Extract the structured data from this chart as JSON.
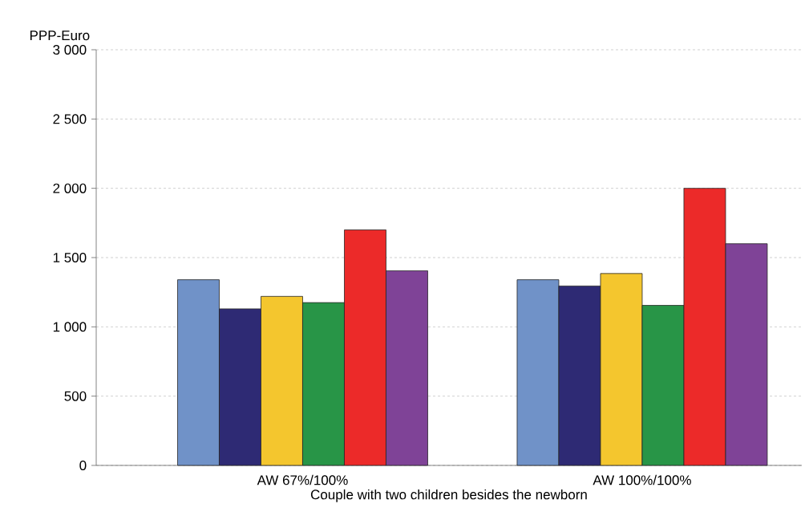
{
  "chart_data": {
    "type": "bar",
    "xlabel": "Couple with two children besides the newborn",
    "ylabel": "PPP-Euro",
    "categories": [
      "AW 67%/100%",
      "AW 100%/100%"
    ],
    "series": [
      {
        "color": "#7092c8",
        "values": [
          1340,
          1340
        ]
      },
      {
        "color": "#2e2a74",
        "values": [
          1130,
          1295
        ]
      },
      {
        "color": "#f4c62e",
        "values": [
          1220,
          1385
        ]
      },
      {
        "color": "#289547",
        "values": [
          1175,
          1155
        ]
      },
      {
        "color": "#ec2a29",
        "values": [
          1700,
          2000
        ]
      },
      {
        "color": "#7f4397",
        "values": [
          1405,
          1600
        ]
      }
    ],
    "ylim": [
      0,
      3000
    ],
    "yticks": [
      {
        "value": 0,
        "label": "0"
      },
      {
        "value": 500,
        "label": "500"
      },
      {
        "value": 1000,
        "label": "1 000"
      },
      {
        "value": 1500,
        "label": "1 500"
      },
      {
        "value": 2000,
        "label": "2 000"
      },
      {
        "value": 2500,
        "label": "2 500"
      },
      {
        "value": 3000,
        "label": "3 000"
      }
    ],
    "grid": "y"
  }
}
